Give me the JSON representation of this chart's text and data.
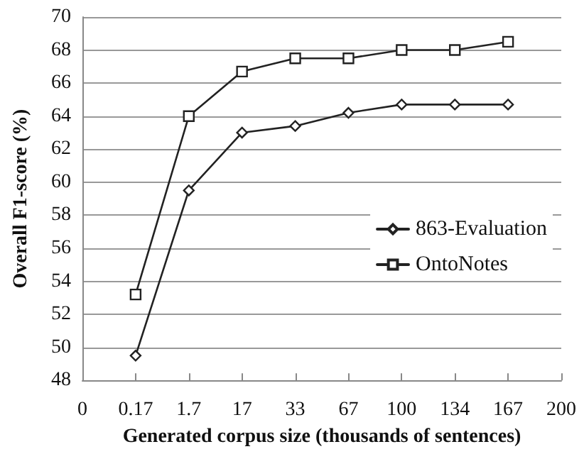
{
  "chart_data": {
    "type": "line",
    "xlabel": "Generated corpus size (thousands of sentences)",
    "ylabel": "Overall F1-score (%)",
    "categories": [
      "0",
      "0.17",
      "1.7",
      "17",
      "33",
      "67",
      "100",
      "134",
      "167",
      "200"
    ],
    "series": [
      {
        "name": "863-Evaluation",
        "color": "#222222",
        "marker": "diamond",
        "values": [
          null,
          49.5,
          59.5,
          63.0,
          63.4,
          64.2,
          64.7,
          64.7,
          64.7,
          null
        ]
      },
      {
        "name": "OntoNotes",
        "color": "#222222",
        "marker": "square",
        "values": [
          null,
          53.2,
          64.0,
          66.7,
          67.5,
          67.5,
          68.0,
          68.0,
          68.5,
          null
        ]
      }
    ],
    "ylim": [
      48,
      70
    ],
    "yticks": [
      48,
      50,
      52,
      54,
      56,
      58,
      60,
      62,
      64,
      66,
      68,
      70
    ],
    "grid": "y",
    "legend": "right",
    "line_style": "solid"
  }
}
